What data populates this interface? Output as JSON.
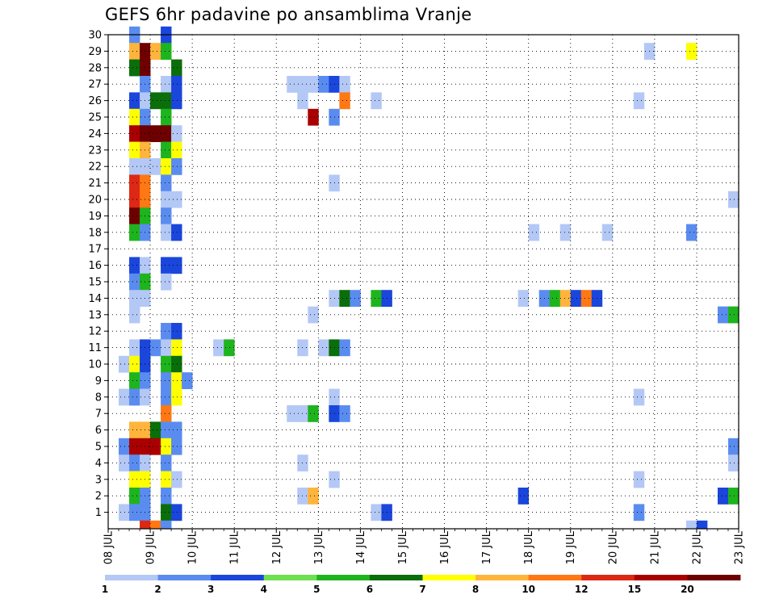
{
  "chart_data": {
    "type": "heatmap",
    "title": "GEFS 6hr padavine po ansamblima Vranje",
    "xlabel": "",
    "ylabel": "",
    "x_ticks": [
      "08 JUL",
      "09 JUL",
      "10 JUL",
      "11 JUL",
      "12 JUL",
      "13 JUL",
      "14 JUL",
      "15 JUL",
      "16 JUL",
      "17 JUL",
      "18 JUL",
      "19 JUL",
      "20 JUL",
      "21 JUL",
      "22 JUL",
      "23 JUL"
    ],
    "y_ticks": [
      "1",
      "2",
      "3",
      "4",
      "5",
      "6",
      "7",
      "8",
      "9",
      "10",
      "11",
      "12",
      "13",
      "14",
      "15",
      "16",
      "17",
      "18",
      "19",
      "20",
      "21",
      "22",
      "23",
      "24",
      "25",
      "26",
      "27",
      "28",
      "29",
      "30"
    ],
    "y_range": [
      0,
      30
    ],
    "grid": true,
    "legend_placement": "bottom",
    "legend": {
      "labels": [
        "1",
        "2",
        "3",
        "4",
        "5",
        "6",
        "7",
        "8",
        "10",
        "12",
        "15",
        "20"
      ],
      "colors": [
        "#b4c8f6",
        "#5a8cf0",
        "#1a46dc",
        "#6ee050",
        "#1eb41e",
        "#0a6e0a",
        "#ffff00",
        "#ffb43c",
        "#ff7814",
        "#dc2814",
        "#aa0000",
        "#6e0000"
      ]
    },
    "cells": [
      [
        8.5,
        30,
        2
      ],
      [
        9.25,
        30,
        3
      ],
      [
        8.5,
        29,
        8
      ],
      [
        8.75,
        29,
        20
      ],
      [
        9,
        29,
        8
      ],
      [
        9.25,
        29,
        5
      ],
      [
        8.5,
        28,
        6
      ],
      [
        8.75,
        28,
        20
      ],
      [
        9.5,
        28,
        6
      ],
      [
        8.75,
        27,
        2
      ],
      [
        9.25,
        27,
        1
      ],
      [
        9.5,
        27,
        3
      ],
      [
        8.5,
        26,
        3
      ],
      [
        8.75,
        26,
        1
      ],
      [
        9,
        26,
        6
      ],
      [
        9.25,
        26,
        6
      ],
      [
        9.5,
        26,
        3
      ],
      [
        8.5,
        25,
        7
      ],
      [
        8.75,
        25,
        2
      ],
      [
        9.25,
        25,
        5
      ],
      [
        8.5,
        24,
        15
      ],
      [
        8.75,
        24,
        20
      ],
      [
        9,
        24,
        20
      ],
      [
        9.25,
        24,
        20
      ],
      [
        9.5,
        24,
        1
      ],
      [
        8.5,
        23,
        7
      ],
      [
        8.75,
        23,
        8
      ],
      [
        9.25,
        23,
        5
      ],
      [
        9.5,
        23,
        7
      ],
      [
        8.5,
        22,
        1
      ],
      [
        8.75,
        22,
        1
      ],
      [
        9,
        22,
        1
      ],
      [
        9.25,
        22,
        7
      ],
      [
        9.5,
        22,
        2
      ],
      [
        8.5,
        21,
        12
      ],
      [
        8.75,
        21,
        10
      ],
      [
        9.25,
        21,
        2
      ],
      [
        8.5,
        20,
        12
      ],
      [
        8.75,
        20,
        10
      ],
      [
        9.25,
        20,
        1
      ],
      [
        9.5,
        20,
        1
      ],
      [
        8.5,
        19,
        20
      ],
      [
        8.75,
        19,
        5
      ],
      [
        9.25,
        19,
        2
      ],
      [
        8.5,
        18,
        5
      ],
      [
        8.75,
        18,
        2
      ],
      [
        9.25,
        18,
        1
      ],
      [
        9.5,
        18,
        3
      ],
      [
        8.5,
        16,
        3
      ],
      [
        8.75,
        16,
        1
      ],
      [
        9.25,
        16,
        3
      ],
      [
        9.5,
        16,
        3
      ],
      [
        8.5,
        15,
        2
      ],
      [
        8.75,
        15,
        5
      ],
      [
        9.25,
        15,
        1
      ],
      [
        8.5,
        14,
        1
      ],
      [
        8.75,
        14,
        1
      ],
      [
        8.5,
        13,
        1
      ],
      [
        9.25,
        12,
        2
      ],
      [
        9.5,
        12,
        3
      ],
      [
        8.5,
        11,
        1
      ],
      [
        8.75,
        11,
        3
      ],
      [
        9,
        11,
        2
      ],
      [
        9.25,
        11,
        1
      ],
      [
        9.5,
        11,
        7
      ],
      [
        8.25,
        10,
        1
      ],
      [
        8.5,
        10,
        7
      ],
      [
        8.75,
        10,
        3
      ],
      [
        9.25,
        10,
        5
      ],
      [
        9.5,
        10,
        6
      ],
      [
        8.5,
        9,
        5
      ],
      [
        8.75,
        9,
        2
      ],
      [
        9.25,
        9,
        2
      ],
      [
        9.5,
        9,
        7
      ],
      [
        9.75,
        9,
        2
      ],
      [
        8.25,
        8,
        1
      ],
      [
        8.5,
        8,
        2
      ],
      [
        8.75,
        8,
        1
      ],
      [
        9.25,
        8,
        2
      ],
      [
        9.5,
        8,
        7
      ],
      [
        9.25,
        7,
        10
      ],
      [
        8.5,
        6,
        8
      ],
      [
        8.75,
        6,
        8
      ],
      [
        9,
        6,
        6
      ],
      [
        9.25,
        6,
        2
      ],
      [
        9.5,
        6,
        2
      ],
      [
        8.25,
        5,
        2
      ],
      [
        8.5,
        5,
        15
      ],
      [
        8.75,
        5,
        15
      ],
      [
        9,
        5,
        15
      ],
      [
        9.25,
        5,
        7
      ],
      [
        9.5,
        5,
        2
      ],
      [
        8.25,
        4,
        1
      ],
      [
        8.5,
        4,
        2
      ],
      [
        8.75,
        4,
        1
      ],
      [
        9.25,
        4,
        2
      ],
      [
        8.5,
        3,
        7
      ],
      [
        8.75,
        3,
        7
      ],
      [
        9.25,
        3,
        7
      ],
      [
        9.5,
        3,
        1
      ],
      [
        8.5,
        2,
        5
      ],
      [
        8.75,
        2,
        2
      ],
      [
        9.25,
        2,
        2
      ],
      [
        8.25,
        1,
        1
      ],
      [
        8.5,
        1,
        2
      ],
      [
        8.75,
        1,
        2
      ],
      [
        9.25,
        1,
        6
      ],
      [
        9.5,
        1,
        3
      ],
      [
        8.75,
        0,
        12
      ],
      [
        9,
        0,
        10
      ],
      [
        9.25,
        0,
        2
      ],
      [
        10.5,
        11,
        1
      ],
      [
        10.75,
        11,
        5
      ],
      [
        12.25,
        27,
        1
      ],
      [
        12.5,
        27,
        1
      ],
      [
        12.75,
        27,
        1
      ],
      [
        13,
        27,
        2
      ],
      [
        13.25,
        27,
        3
      ],
      [
        13.5,
        27,
        1
      ],
      [
        12.5,
        26,
        1
      ],
      [
        13.5,
        26,
        10
      ],
      [
        14.25,
        26,
        1
      ],
      [
        12.75,
        25,
        15
      ],
      [
        13.25,
        25,
        2
      ],
      [
        13.25,
        21,
        1
      ],
      [
        13.25,
        14,
        1
      ],
      [
        13.5,
        14,
        6
      ],
      [
        13.75,
        14,
        2
      ],
      [
        14.25,
        14,
        5
      ],
      [
        14.5,
        14,
        3
      ],
      [
        12.75,
        13,
        1
      ],
      [
        12.5,
        11,
        1
      ],
      [
        13,
        11,
        1
      ],
      [
        13.25,
        11,
        6
      ],
      [
        13.5,
        11,
        2
      ],
      [
        13.25,
        8,
        1
      ],
      [
        12.25,
        7,
        1
      ],
      [
        12.5,
        7,
        1
      ],
      [
        12.75,
        7,
        5
      ],
      [
        13.25,
        7,
        3
      ],
      [
        13.5,
        7,
        2
      ],
      [
        12.5,
        4,
        1
      ],
      [
        13.25,
        3,
        1
      ],
      [
        12.5,
        2,
        1
      ],
      [
        12.75,
        2,
        8
      ],
      [
        14.25,
        1,
        1
      ],
      [
        14.5,
        1,
        3
      ],
      [
        18,
        18,
        1
      ],
      [
        18.75,
        18,
        1
      ],
      [
        19.75,
        18,
        1
      ],
      [
        17.75,
        14,
        1
      ],
      [
        18.25,
        14,
        2
      ],
      [
        18.5,
        14,
        5
      ],
      [
        18.75,
        14,
        8
      ],
      [
        19,
        14,
        3
      ],
      [
        19.25,
        14,
        10
      ],
      [
        19.5,
        14,
        3
      ],
      [
        17.75,
        2,
        3
      ],
      [
        20.5,
        26,
        1
      ],
      [
        20.5,
        8,
        1
      ],
      [
        20.5,
        3,
        1
      ],
      [
        20.5,
        1,
        2
      ],
      [
        21.75,
        0,
        1
      ],
      [
        22,
        0,
        3
      ],
      [
        20.75,
        29,
        1
      ],
      [
        21.75,
        29,
        7
      ],
      [
        21.75,
        18,
        2
      ],
      [
        22.75,
        20,
        1
      ],
      [
        22.5,
        13,
        2
      ],
      [
        22.75,
        13,
        5
      ],
      [
        22.75,
        5,
        2
      ],
      [
        22.75,
        4,
        1
      ],
      [
        22.5,
        2,
        3
      ],
      [
        22.75,
        2,
        5
      ]
    ]
  }
}
